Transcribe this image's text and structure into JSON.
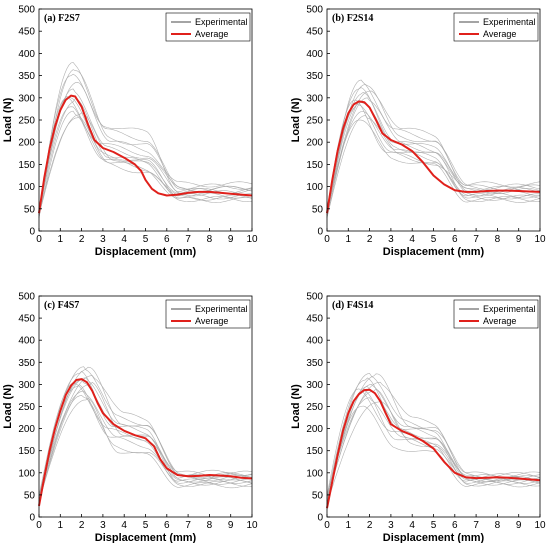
{
  "colors": {
    "experimental": "#a8a8a8",
    "average": "#e0201b",
    "axis": "#000000",
    "legend_experimental": "#6e6e6e"
  },
  "chart_data": [
    {
      "type": "line",
      "title": "(a) F2S7",
      "xlabel": "Displacement (mm)",
      "ylabel": "Load (N)",
      "xlim": [
        0,
        10
      ],
      "ylim": [
        0,
        500
      ],
      "xticks": [
        "0",
        "1",
        "2",
        "3",
        "4",
        "5",
        "6",
        "7",
        "8",
        "9",
        "10"
      ],
      "yticks": [
        "0",
        "50",
        "100",
        "150",
        "200",
        "250",
        "300",
        "350",
        "400",
        "450",
        "500"
      ],
      "grid": false,
      "legend_position": "top-right",
      "legend": [
        "Experimental",
        "Average"
      ],
      "series": [
        {
          "name": "Average",
          "x": [
            0,
            0.25,
            0.5,
            0.75,
            1.0,
            1.25,
            1.5,
            1.7,
            2.0,
            2.3,
            2.6,
            3.0,
            3.5,
            4.0,
            4.5,
            4.8,
            5.0,
            5.3,
            5.6,
            6.0,
            6.5,
            7.0,
            7.5,
            8.0,
            8.5,
            9.0,
            9.5,
            10
          ],
          "y": [
            40,
            120,
            185,
            235,
            272,
            295,
            305,
            303,
            280,
            240,
            205,
            187,
            178,
            165,
            150,
            135,
            115,
            95,
            85,
            80,
            82,
            86,
            88,
            88,
            86,
            84,
            82,
            80
          ]
        },
        {
          "name": "Experimental",
          "curves": [
            {
              "peak": 380,
              "peak_x": 1.6,
              "plateau": 225,
              "tail": 95
            },
            {
              "peak": 365,
              "peak_x": 1.7,
              "plateau": 210,
              "tail": 100
            },
            {
              "peak": 350,
              "peak_x": 1.5,
              "plateau": 240,
              "tail": 90
            },
            {
              "peak": 335,
              "peak_x": 1.8,
              "plateau": 200,
              "tail": 105
            },
            {
              "peak": 320,
              "peak_x": 1.6,
              "plateau": 185,
              "tail": 85
            },
            {
              "peak": 305,
              "peak_x": 1.4,
              "plateau": 175,
              "tail": 80
            },
            {
              "peak": 292,
              "peak_x": 1.7,
              "plateau": 170,
              "tail": 78
            },
            {
              "peak": 280,
              "peak_x": 1.5,
              "plateau": 160,
              "tail": 75
            },
            {
              "peak": 270,
              "peak_x": 1.6,
              "plateau": 150,
              "tail": 72
            },
            {
              "peak": 262,
              "peak_x": 1.9,
              "plateau": 165,
              "tail": 90
            },
            {
              "peak": 255,
              "peak_x": 1.8,
              "plateau": 155,
              "tail": 70
            },
            {
              "peak": 300,
              "peak_x": 1.3,
              "plateau": 195,
              "tail": 95
            }
          ]
        }
      ]
    },
    {
      "type": "line",
      "title": "(b) F2S14",
      "xlabel": "Displacement (mm)",
      "ylabel": "Load (N)",
      "xlim": [
        0,
        10
      ],
      "ylim": [
        0,
        500
      ],
      "xticks": [
        "0",
        "1",
        "2",
        "3",
        "4",
        "5",
        "6",
        "7",
        "8",
        "9",
        "10"
      ],
      "yticks": [
        "0",
        "50",
        "100",
        "150",
        "200",
        "250",
        "300",
        "350",
        "400",
        "450",
        "500"
      ],
      "grid": false,
      "legend_position": "top-right",
      "legend": [
        "Experimental",
        "Average"
      ],
      "series": [
        {
          "name": "Average",
          "x": [
            0,
            0.25,
            0.5,
            0.75,
            1.0,
            1.25,
            1.5,
            1.75,
            2.0,
            2.3,
            2.6,
            3.0,
            3.5,
            4.0,
            4.5,
            5.0,
            5.5,
            6.0,
            6.5,
            7.0,
            7.5,
            8.0,
            8.5,
            9.0,
            9.5,
            10
          ],
          "y": [
            40,
            115,
            180,
            230,
            265,
            285,
            292,
            290,
            278,
            250,
            220,
            205,
            195,
            180,
            155,
            125,
            105,
            92,
            88,
            88,
            90,
            91,
            91,
            90,
            89,
            88
          ]
        },
        {
          "name": "Experimental",
          "curves": [
            {
              "peak": 340,
              "peak_x": 1.6,
              "plateau": 225,
              "tail": 100
            },
            {
              "peak": 330,
              "peak_x": 1.8,
              "plateau": 215,
              "tail": 95
            },
            {
              "peak": 320,
              "peak_x": 1.5,
              "plateau": 205,
              "tail": 105
            },
            {
              "peak": 310,
              "peak_x": 1.7,
              "plateau": 200,
              "tail": 90
            },
            {
              "peak": 300,
              "peak_x": 1.9,
              "plateau": 195,
              "tail": 85
            },
            {
              "peak": 290,
              "peak_x": 1.6,
              "plateau": 190,
              "tail": 80
            },
            {
              "peak": 280,
              "peak_x": 1.4,
              "plateau": 185,
              "tail": 78
            },
            {
              "peak": 270,
              "peak_x": 1.7,
              "plateau": 180,
              "tail": 75
            },
            {
              "peak": 260,
              "peak_x": 1.8,
              "plateau": 170,
              "tail": 72
            },
            {
              "peak": 250,
              "peak_x": 1.5,
              "plateau": 165,
              "tail": 70
            },
            {
              "peak": 315,
              "peak_x": 2.0,
              "plateau": 230,
              "tail": 98
            },
            {
              "peak": 295,
              "peak_x": 1.3,
              "plateau": 175,
              "tail": 92
            }
          ]
        }
      ]
    },
    {
      "type": "line",
      "title": "(c) F4S7",
      "xlabel": "Displacement (mm)",
      "ylabel": "Load (N)",
      "xlim": [
        0,
        10
      ],
      "ylim": [
        0,
        500
      ],
      "xticks": [
        "0",
        "1",
        "2",
        "3",
        "4",
        "5",
        "6",
        "7",
        "8",
        "9",
        "10"
      ],
      "yticks": [
        "0",
        "50",
        "100",
        "150",
        "200",
        "250",
        "300",
        "350",
        "400",
        "450",
        "500"
      ],
      "grid": false,
      "legend_position": "top-right",
      "legend": [
        "Experimental",
        "Average"
      ],
      "series": [
        {
          "name": "Average",
          "x": [
            0,
            0.25,
            0.5,
            0.75,
            1.0,
            1.25,
            1.5,
            1.75,
            2.0,
            2.25,
            2.5,
            2.75,
            3.0,
            3.5,
            4.0,
            4.5,
            5.0,
            5.4,
            5.7,
            6.0,
            6.5,
            7.0,
            7.5,
            8.0,
            8.5,
            9.0,
            9.5,
            10
          ],
          "y": [
            25,
            90,
            150,
            200,
            240,
            275,
            297,
            310,
            312,
            305,
            285,
            258,
            235,
            210,
            195,
            185,
            178,
            160,
            130,
            110,
            95,
            92,
            93,
            95,
            94,
            92,
            89,
            87
          ]
        },
        {
          "name": "Experimental",
          "curves": [
            {
              "peak": 340,
              "peak_x": 2.1,
              "plateau": 225,
              "tail": 95
            },
            {
              "peak": 335,
              "peak_x": 2.3,
              "plateau": 215,
              "tail": 100
            },
            {
              "peak": 325,
              "peak_x": 1.9,
              "plateau": 210,
              "tail": 90
            },
            {
              "peak": 315,
              "peak_x": 2.2,
              "plateau": 205,
              "tail": 88
            },
            {
              "peak": 310,
              "peak_x": 2.0,
              "plateau": 200,
              "tail": 85
            },
            {
              "peak": 300,
              "peak_x": 2.4,
              "plateau": 190,
              "tail": 82
            },
            {
              "peak": 295,
              "peak_x": 1.8,
              "plateau": 185,
              "tail": 80
            },
            {
              "peak": 285,
              "peak_x": 2.1,
              "plateau": 175,
              "tail": 78
            },
            {
              "peak": 275,
              "peak_x": 2.0,
              "plateau": 160,
              "tail": 75
            },
            {
              "peak": 265,
              "peak_x": 2.2,
              "plateau": 150,
              "tail": 72
            },
            {
              "peak": 320,
              "peak_x": 2.5,
              "plateau": 230,
              "tail": 98
            },
            {
              "peak": 305,
              "peak_x": 1.7,
              "plateau": 195,
              "tail": 92
            }
          ]
        }
      ]
    },
    {
      "type": "line",
      "title": "(d) F4S14",
      "xlabel": "Displacement (mm)",
      "ylabel": "Load (N)",
      "xlim": [
        0,
        10
      ],
      "ylim": [
        0,
        500
      ],
      "xticks": [
        "0",
        "1",
        "2",
        "3",
        "4",
        "5",
        "6",
        "7",
        "8",
        "9",
        "10"
      ],
      "yticks": [
        "0",
        "50",
        "100",
        "150",
        "200",
        "250",
        "300",
        "350",
        "400",
        "450",
        "500"
      ],
      "grid": false,
      "legend_position": "top-right",
      "legend": [
        "Experimental",
        "Average"
      ],
      "series": [
        {
          "name": "Average",
          "x": [
            0,
            0.25,
            0.5,
            0.75,
            1.0,
            1.25,
            1.5,
            1.75,
            2.0,
            2.25,
            2.5,
            2.75,
            3.0,
            3.5,
            4.0,
            4.5,
            5.0,
            5.5,
            6.0,
            6.5,
            7.0,
            7.5,
            8.0,
            8.5,
            9.0,
            9.5,
            10
          ],
          "y": [
            20,
            80,
            140,
            195,
            235,
            262,
            278,
            287,
            288,
            280,
            262,
            235,
            210,
            195,
            185,
            172,
            155,
            125,
            100,
            90,
            88,
            89,
            90,
            89,
            87,
            85,
            83
          ]
        },
        {
          "name": "Experimental",
          "curves": [
            {
              "peak": 325,
              "peak_x": 2.0,
              "plateau": 215,
              "tail": 95
            },
            {
              "peak": 320,
              "peak_x": 2.3,
              "plateau": 210,
              "tail": 92
            },
            {
              "peak": 310,
              "peak_x": 1.8,
              "plateau": 205,
              "tail": 90
            },
            {
              "peak": 300,
              "peak_x": 2.1,
              "plateau": 200,
              "tail": 88
            },
            {
              "peak": 295,
              "peak_x": 1.9,
              "plateau": 195,
              "tail": 85
            },
            {
              "peak": 285,
              "peak_x": 2.2,
              "plateau": 185,
              "tail": 82
            },
            {
              "peak": 280,
              "peak_x": 1.7,
              "plateau": 180,
              "tail": 80
            },
            {
              "peak": 270,
              "peak_x": 2.0,
              "plateau": 175,
              "tail": 78
            },
            {
              "peak": 260,
              "peak_x": 2.4,
              "plateau": 170,
              "tail": 76
            },
            {
              "peak": 250,
              "peak_x": 1.6,
              "plateau": 160,
              "tail": 74
            },
            {
              "peak": 305,
              "peak_x": 2.5,
              "plateau": 220,
              "tail": 96
            },
            {
              "peak": 290,
              "peak_x": 1.5,
              "plateau": 190,
              "tail": 86
            }
          ]
        }
      ]
    }
  ]
}
